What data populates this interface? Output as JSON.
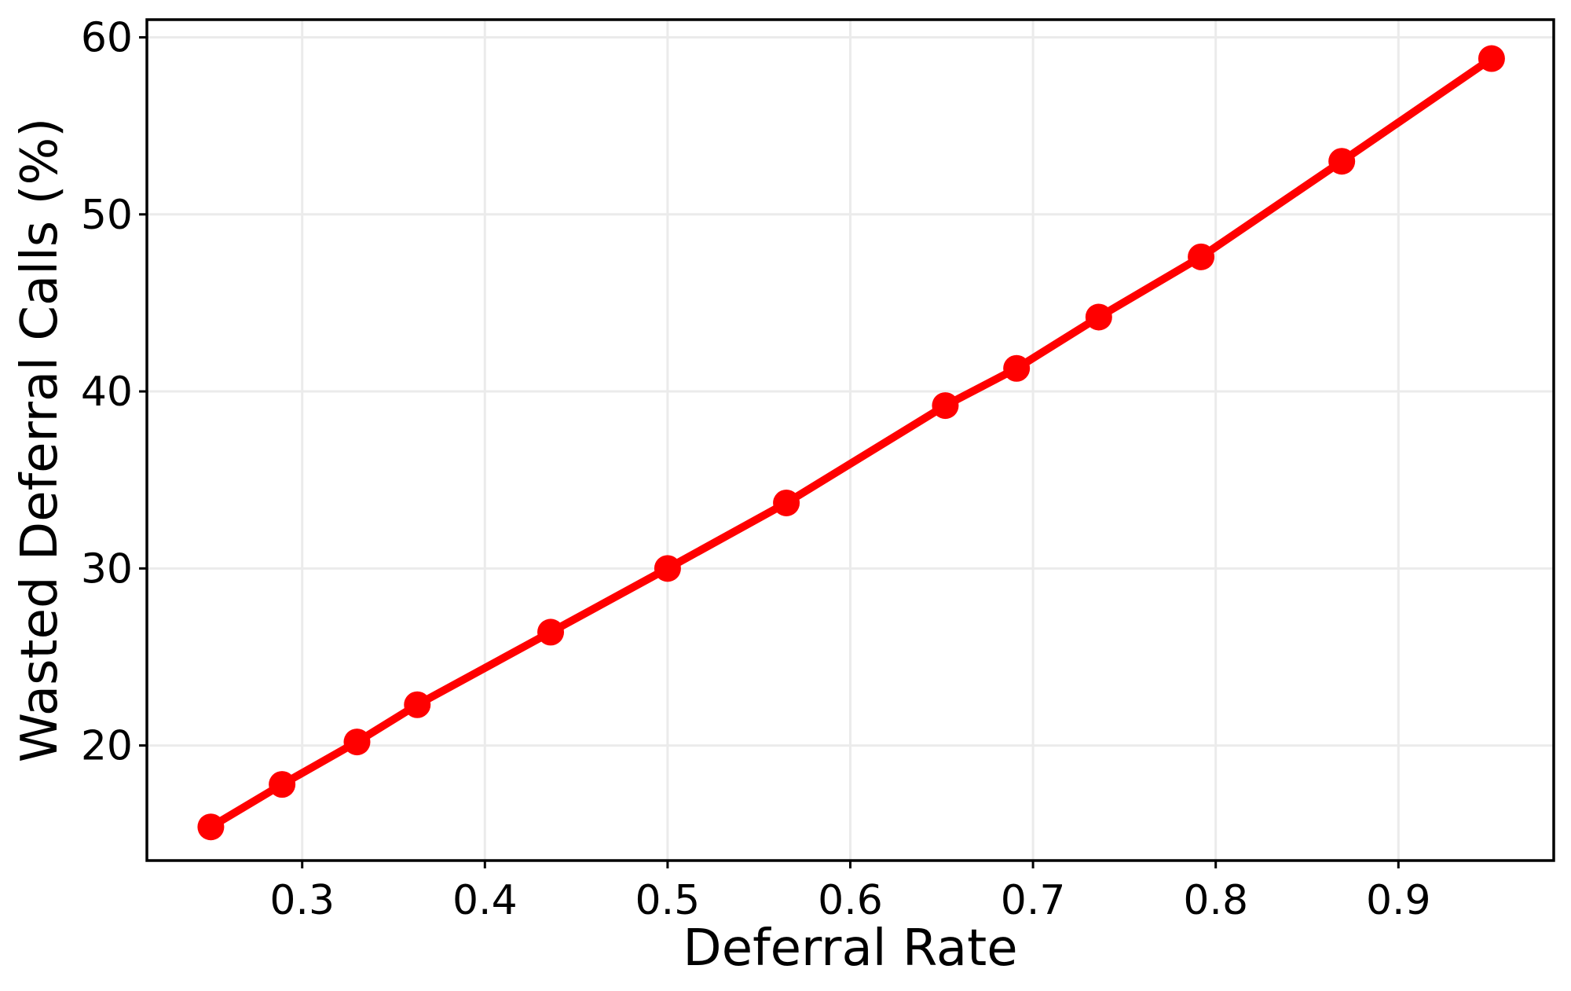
{
  "chart_data": {
    "type": "line",
    "title": "",
    "xlabel": "Deferral Rate",
    "ylabel": "Wasted Deferral Calls (%)",
    "xlim": [
      0.215,
      0.985
    ],
    "ylim": [
      13.5,
      61
    ],
    "xticks": [
      0.3,
      0.4,
      0.5,
      0.6,
      0.7,
      0.8,
      0.9
    ],
    "xtick_labels": [
      "0.3",
      "0.4",
      "0.5",
      "0.6",
      "0.7",
      "0.8",
      "0.9"
    ],
    "yticks": [
      20,
      30,
      40,
      50,
      60
    ],
    "ytick_labels": [
      "20",
      "30",
      "40",
      "50",
      "60"
    ],
    "grid": true,
    "legend": "none",
    "series": [
      {
        "color": "#ff0000",
        "marker": "circle",
        "x": [
          0.25,
          0.289,
          0.33,
          0.363,
          0.436,
          0.5,
          0.565,
          0.652,
          0.691,
          0.736,
          0.792,
          0.869,
          0.951
        ],
        "y": [
          15.4,
          17.8,
          20.2,
          22.3,
          26.4,
          30.0,
          33.7,
          39.2,
          41.3,
          44.2,
          47.6,
          53.0,
          58.8
        ]
      }
    ]
  }
}
